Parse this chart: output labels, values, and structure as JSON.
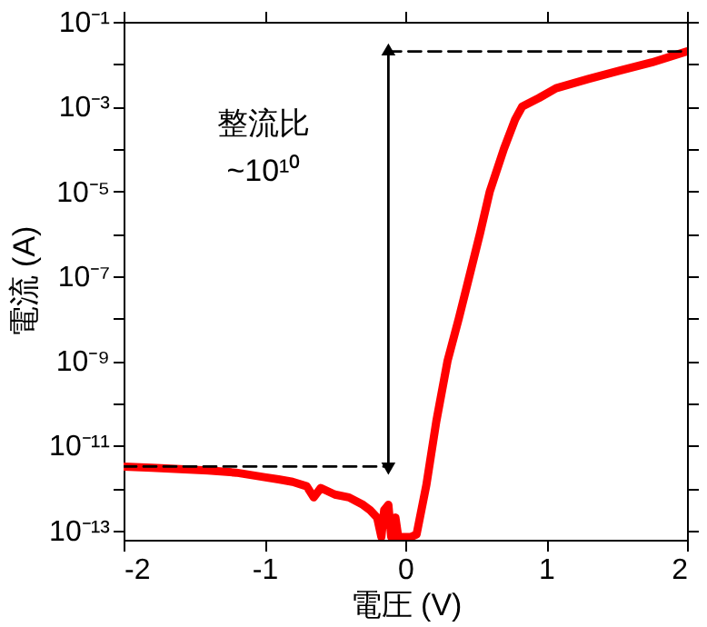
{
  "chart_data": {
    "type": "line",
    "xlabel": "電圧 (V)",
    "ylabel": "電流 (A)",
    "log": "y",
    "xlim": [
      -2,
      2
    ],
    "ylim": [
      6e-14,
      0.1
    ],
    "xticks": [
      -2,
      -1,
      0,
      1,
      2
    ],
    "yticks": [
      {
        "value": 1e-13,
        "label": "10⁻¹³"
      },
      {
        "value": 1e-12,
        "label": null
      },
      {
        "value": 1e-11,
        "label": "10⁻¹¹"
      },
      {
        "value": 1e-10,
        "label": null
      },
      {
        "value": 1e-09,
        "label": "10⁻⁹"
      },
      {
        "value": 1e-08,
        "label": null
      },
      {
        "value": 1e-07,
        "label": "10⁻⁷"
      },
      {
        "value": 1e-06,
        "label": null
      },
      {
        "value": 1e-05,
        "label": "10⁻⁵"
      },
      {
        "value": 0.0001,
        "label": null
      },
      {
        "value": 0.001,
        "label": "10⁻³"
      },
      {
        "value": 0.01,
        "label": null
      },
      {
        "value": 0.1,
        "label": "10⁻¹"
      }
    ],
    "grid": false,
    "annotations": [
      "整流比",
      "~10¹⁰"
    ],
    "series": [
      {
        "color": "#ff0000",
        "line_style": "solid",
        "x": [
          -2,
          -1.8,
          -1.6,
          -1.4,
          -1.2,
          -1.0,
          -0.9,
          -0.8,
          -0.7,
          -0.65,
          -0.6,
          -0.5,
          -0.4,
          -0.3,
          -0.25,
          -0.2,
          -0.17,
          -0.15,
          -0.12,
          -0.1,
          -0.07,
          -0.05,
          -0.02,
          0.0,
          0.04,
          0.08,
          0.15,
          0.22,
          0.3,
          0.38,
          0.455,
          0.53,
          0.6,
          0.7,
          0.78,
          0.83,
          0.95,
          1.07,
          1.3,
          1.53,
          1.75,
          2.0
        ],
        "values": [
          3.2e-12,
          3e-12,
          2.8e-12,
          2.6e-12,
          2.3e-12,
          1.8e-12,
          1.6e-12,
          1.4e-12,
          1.1e-12,
          6e-13,
          1e-12,
          7e-13,
          6e-13,
          4e-13,
          3e-13,
          2e-13,
          7e-14,
          3e-13,
          4e-13,
          7e-14,
          2e-13,
          7e-14,
          7e-14,
          7e-14,
          7e-14,
          8e-14,
          1.2e-12,
          3.7e-11,
          1e-09,
          1e-08,
          1e-07,
          1e-06,
          1e-05,
          0.0001,
          0.0005,
          0.001,
          0.0016,
          0.0027,
          0.0045,
          0.0072,
          0.011,
          0.02
        ]
      },
      {
        "color": "#000000",
        "line_style": "dashed",
        "x": [
          -2,
          -0.12
        ],
        "values": [
          3.2e-12,
          3.2e-12
        ]
      },
      {
        "color": "#000000",
        "line_style": "dashed",
        "x": [
          -0.12,
          2
        ],
        "values": [
          0.02,
          0.02
        ]
      },
      {
        "color": "#000000",
        "line_style": "solid",
        "x": [
          -0.12,
          -0.12
        ],
        "values": [
          3.2e-12,
          0.02
        ]
      }
    ]
  }
}
